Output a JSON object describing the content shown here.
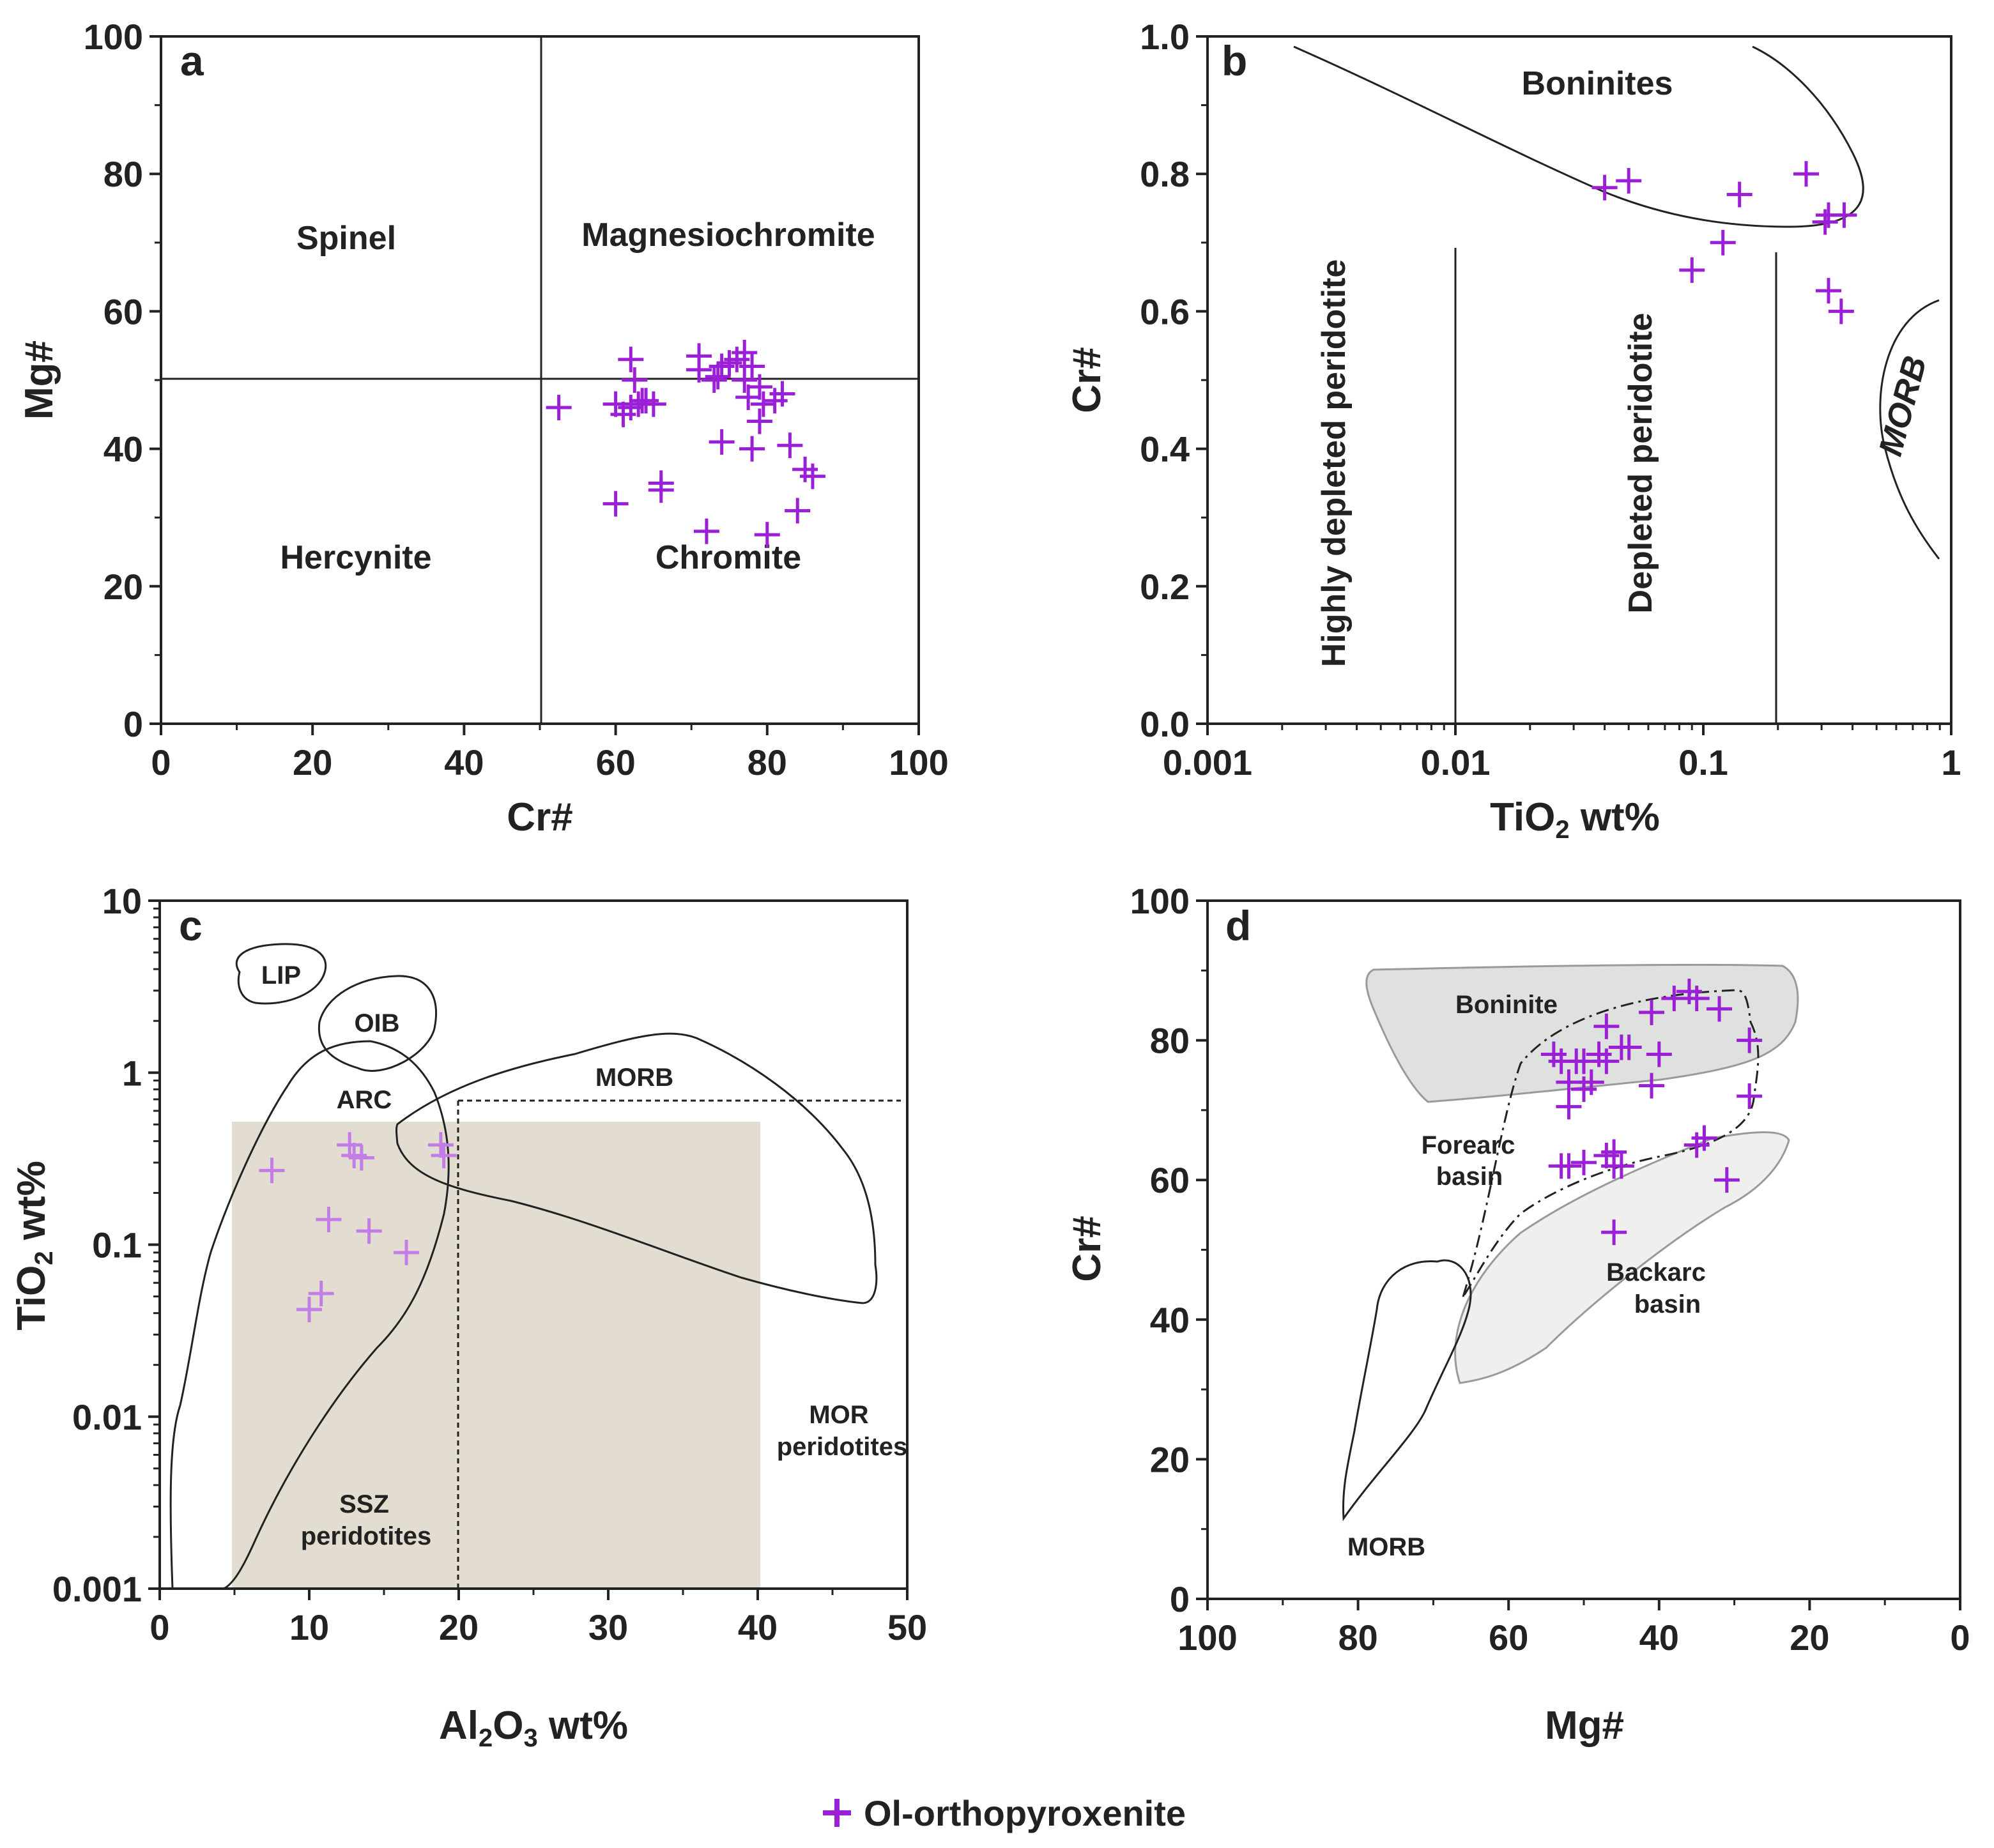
{
  "legend": {
    "label": "Ol-orthopyroxenite",
    "marker_color": "#9a1fd6"
  },
  "chart_data": [
    {
      "panel": "a",
      "type": "scatter",
      "xlabel": "Cr#",
      "ylabel": "Mg#",
      "xlim": [
        0,
        100
      ],
      "ylim": [
        0,
        100
      ],
      "xticks": [
        "0",
        "20",
        "40",
        "60",
        "80",
        "100"
      ],
      "yticks": [
        "0",
        "20",
        "40",
        "60",
        "80",
        "100"
      ],
      "fields": [
        "Spinel",
        "Magnesiochromite",
        "Hercynite",
        "Chromite"
      ],
      "boundaries": {
        "x": 50,
        "y": 50
      },
      "series": [
        {
          "name": "Ol-orthopyroxenite",
          "x": [
            52.5,
            60,
            61,
            62,
            62,
            62.5,
            63,
            63.5,
            64,
            65,
            60,
            66,
            66,
            72,
            74,
            74,
            71,
            73,
            76,
            77,
            77,
            78,
            78,
            79,
            79,
            80,
            81,
            82,
            83,
            84,
            85,
            86,
            71,
            73.5,
            75,
            77.5,
            79.5
          ],
          "y": [
            46,
            46.5,
            45,
            46,
            53,
            50,
            46.5,
            47,
            47,
            46.5,
            32,
            35,
            34,
            28,
            41,
            52,
            53.5,
            50,
            53,
            54,
            50,
            52,
            40,
            49,
            44,
            27.5,
            47,
            48,
            40.5,
            31,
            37,
            36,
            51.5,
            50.5,
            52.5,
            47.5,
            46.5
          ]
        }
      ]
    },
    {
      "panel": "b",
      "type": "scatter",
      "xlabel_main": "TiO",
      "xlabel_sub": "2",
      "xlabel_unit": " wt%",
      "ylabel": "Cr#",
      "xscale": "log",
      "xlim": [
        0.001,
        1
      ],
      "ylim": [
        0,
        1
      ],
      "xticks": [
        "0.001",
        "0.01",
        "0.1",
        "1"
      ],
      "yticks": [
        "0.0",
        "0.2",
        "0.4",
        "0.6",
        "0.8",
        "1.0"
      ],
      "fields": [
        "Boninites",
        "Highly depleted peridotite",
        "Depleted peridotite",
        "MORB"
      ],
      "series": [
        {
          "name": "Ol-orthopyroxenite",
          "x": [
            0.04,
            0.05,
            0.09,
            0.12,
            0.14,
            0.26,
            0.31,
            0.32,
            0.32,
            0.36,
            0.37
          ],
          "y": [
            0.78,
            0.79,
            0.66,
            0.7,
            0.77,
            0.8,
            0.73,
            0.74,
            0.63,
            0.6,
            0.74
          ]
        }
      ]
    },
    {
      "panel": "c",
      "type": "scatter",
      "xlabel_pre": "Al",
      "xlabel_sub1": "2",
      "xlabel_mid": "O",
      "xlabel_sub2": "3",
      "xlabel_unit": " wt%",
      "ylabel_main": "TiO",
      "ylabel_sub": "2",
      "ylabel_unit": " wt%",
      "yscale": "log",
      "xlim": [
        0,
        50
      ],
      "ylim": [
        0.001,
        10
      ],
      "xticks": [
        "0",
        "10",
        "20",
        "30",
        "40",
        "50"
      ],
      "yticks": [
        "0.001",
        "0.01",
        "0.1",
        "1",
        "10"
      ],
      "fields": [
        "LIP",
        "OIB",
        "ARC",
        "MORB",
        "MOR",
        "peridotites",
        "SSZ",
        "peridotites"
      ],
      "series": [
        {
          "name": "Ol-orthopyroxenite",
          "x": [
            7.5,
            10,
            10.8,
            11.3,
            12.7,
            13,
            13.5,
            14,
            16.5,
            18.8,
            19
          ],
          "y": [
            0.27,
            0.042,
            0.052,
            0.14,
            0.38,
            0.33,
            0.32,
            0.12,
            0.09,
            0.38,
            0.33
          ]
        }
      ]
    },
    {
      "panel": "d",
      "type": "scatter",
      "xlabel": "Mg#",
      "ylabel": "Cr#",
      "xlim": [
        100,
        0
      ],
      "ylim": [
        0,
        100
      ],
      "xticks": [
        "100",
        "80",
        "60",
        "40",
        "20",
        "0"
      ],
      "yticks": [
        "0",
        "20",
        "40",
        "60",
        "80",
        "100"
      ],
      "fields": [
        "Boninite",
        "Forearc",
        "basin",
        "Backarc",
        "basin",
        "MORB"
      ],
      "series": [
        {
          "name": "Ol-orthopyroxenite",
          "x": [
            54,
            53,
            52,
            52,
            51,
            50,
            50,
            49,
            48,
            47,
            47,
            45,
            44,
            41,
            40,
            41,
            38,
            36,
            35,
            32,
            28,
            28,
            53,
            52,
            50,
            47,
            46,
            46,
            45,
            35,
            34,
            46,
            31
          ],
          "y": [
            78,
            77,
            74,
            70.5,
            77,
            77,
            73,
            74,
            78,
            82,
            77,
            79,
            79,
            84,
            78,
            73.5,
            86,
            87,
            86,
            84.5,
            80,
            72,
            62,
            62,
            62.5,
            63.5,
            62,
            64,
            62,
            65,
            66,
            52.5,
            60
          ]
        }
      ]
    }
  ]
}
